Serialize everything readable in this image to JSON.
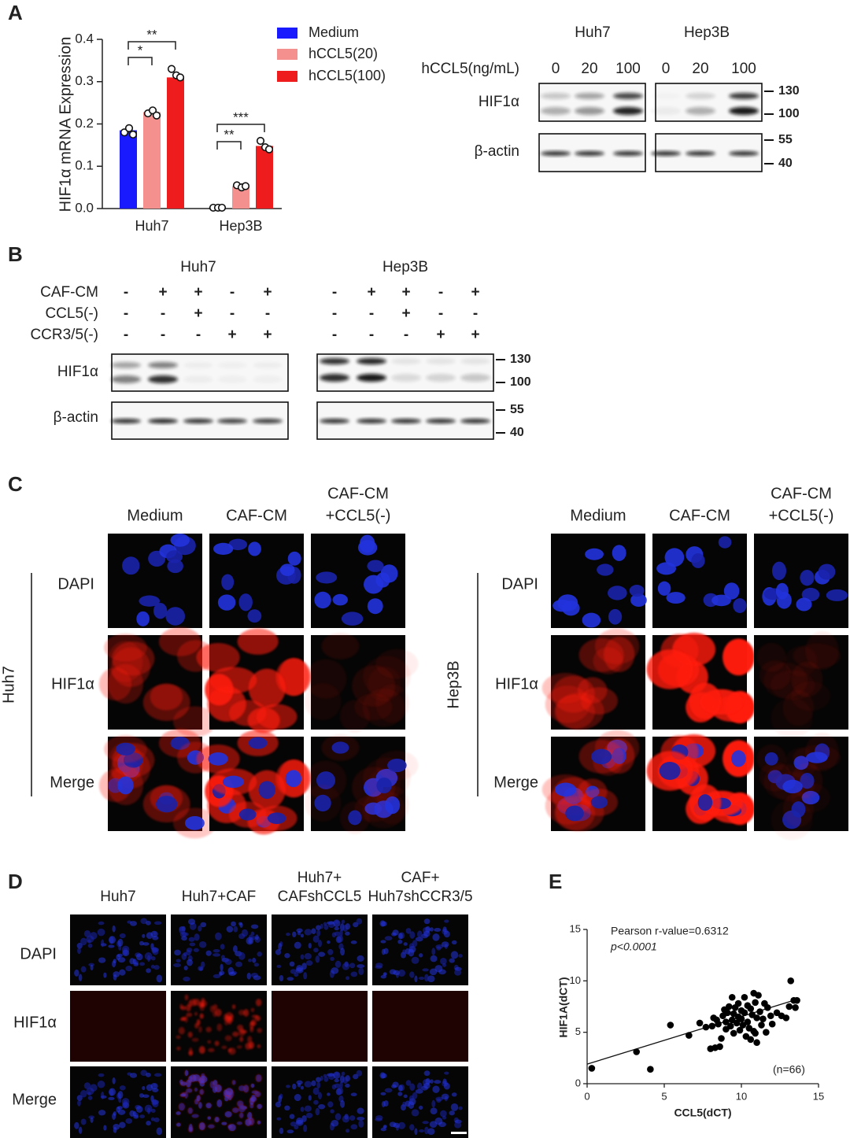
{
  "panel_labels": [
    "A",
    "B",
    "C",
    "D",
    "E"
  ],
  "chart_data": [
    {
      "type": "bar",
      "ylabel": "HIF1α mRNA Expression",
      "categories": [
        "Huh7",
        "Hep3B"
      ],
      "series": [
        {
          "name": "Medium",
          "color": "#1a1aff",
          "values": [
            0.185,
            0.002
          ],
          "points": [
            [
              0.18,
              0.19,
              0.175
            ],
            [
              0.002,
              0.002,
              0.002
            ]
          ]
        },
        {
          "name": "hCCL5(20)",
          "color": "#f4918f",
          "values": [
            0.228,
            0.053
          ],
          "points": [
            [
              0.225,
              0.232,
              0.22
            ],
            [
              0.055,
              0.05,
              0.053
            ]
          ]
        },
        {
          "name": "hCCL5(100)",
          "color": "#ee1c1c",
          "values": [
            0.31,
            0.148
          ],
          "points": [
            [
              0.33,
              0.315,
              0.31
            ],
            [
              0.16,
              0.145,
              0.14
            ]
          ]
        }
      ],
      "ylim": [
        0,
        0.4
      ],
      "yticks": [
        {
          "value": 0,
          "label": "0.0"
        },
        0.1,
        0.2,
        0.3,
        0.4
      ],
      "annotations": [
        "**",
        "*",
        "***",
        "**"
      ],
      "legend": "right"
    },
    {
      "type": "scatter",
      "xlabel": "CCL5(dCT)",
      "ylabel": "HIF1A(dCT)",
      "annotations": [
        "Pearson r-value=0.6312",
        "p<0.0001",
        "(n=66)"
      ],
      "x": [
        0.3,
        3.2,
        4.1,
        5.4,
        6.6,
        7.3,
        7.7,
        8.0,
        8.1,
        8.2,
        8.4,
        8.5,
        8.6,
        8.7,
        8.8,
        8.9,
        9.0,
        9.0,
        9.1,
        9.2,
        9.3,
        9.4,
        9.5,
        9.5,
        9.6,
        9.7,
        9.8,
        9.8,
        9.9,
        10.0,
        10.0,
        10.1,
        10.2,
        10.2,
        10.3,
        10.4,
        10.4,
        10.5,
        10.6,
        10.6,
        10.7,
        10.8,
        10.8,
        10.9,
        11.0,
        11.0,
        11.1,
        11.2,
        11.3,
        11.4,
        11.5,
        11.6,
        11.7,
        11.9,
        12.0,
        12.3,
        12.6,
        12.9,
        13.1,
        13.2,
        13.4,
        13.5,
        13.6,
        8.3,
        9.4,
        10.9
      ],
      "y": [
        1.5,
        3.1,
        1.4,
        5.7,
        4.7,
        5.9,
        5.5,
        3.4,
        5.6,
        6.4,
        6.2,
        5.8,
        3.6,
        4.4,
        6.6,
        7.2,
        6.0,
        5.3,
        6.9,
        7.5,
        5.6,
        6.2,
        4.9,
        6.8,
        7.4,
        5.9,
        6.5,
        7.8,
        5.2,
        7.1,
        6.3,
        5.7,
        8.4,
        6.9,
        4.6,
        7.6,
        6.0,
        5.4,
        7.3,
        4.3,
        6.7,
        8.8,
        5.1,
        7.9,
        4.0,
        6.4,
        8.6,
        7.0,
        5.7,
        6.3,
        7.8,
        5.0,
        7.4,
        6.6,
        5.8,
        6.9,
        6.6,
        6.4,
        7.5,
        10.0,
        8.1,
        7.4,
        8.1,
        3.5,
        8.4,
        4.9
      ],
      "xlim": [
        0,
        15
      ],
      "ylim": [
        0,
        15
      ],
      "xticks": [
        0,
        5,
        10,
        15
      ],
      "yticks": [
        0,
        5,
        10,
        15
      ],
      "color": "#000000",
      "fit_line": {
        "x": [
          0,
          13.6
        ],
        "y": [
          1.9,
          8.2
        ]
      }
    }
  ],
  "blot_a": {
    "cell_lines": [
      "Huh7",
      "Hep3B"
    ],
    "dose_label": "hCCL5(ng/mL)",
    "doses": [
      "0",
      "20",
      "100",
      "0",
      "20",
      "100"
    ],
    "rows": [
      "HIF1α",
      "β-actin"
    ],
    "markers": [
      "130",
      "100",
      "55",
      "40"
    ]
  },
  "blot_b": {
    "cell_lines": [
      "Huh7",
      "Hep3B"
    ],
    "conditions": [
      {
        "name": "CAF-CM",
        "signs": [
          "-",
          "+",
          "+",
          "-",
          "+"
        ]
      },
      {
        "name": "CCL5(-)",
        "signs": [
          "-",
          "-",
          "+",
          "-",
          "-"
        ]
      },
      {
        "name": "CCR3/5(-)",
        "signs": [
          "-",
          "-",
          "-",
          "+",
          "+"
        ]
      }
    ],
    "rows": [
      "HIF1α",
      "β-actin"
    ],
    "markers": [
      "130",
      "100",
      "55",
      "40"
    ]
  },
  "panel_c": {
    "groups": [
      {
        "cell_line": "Huh7",
        "columns": [
          [
            "Medium"
          ],
          [
            "CAF-CM"
          ],
          [
            "CAF-CM",
            "+CCL5(-)"
          ]
        ]
      },
      {
        "cell_line": "Hep3B",
        "columns": [
          [
            "Medium"
          ],
          [
            "CAF-CM"
          ],
          [
            "CAF-CM",
            "+CCL5(-)"
          ]
        ]
      }
    ],
    "rows": [
      "DAPI",
      "HIF1α",
      "Merge"
    ]
  },
  "panel_d": {
    "columns": [
      [
        "Huh7"
      ],
      [
        "Huh7+CAF"
      ],
      [
        "Huh7+",
        "CAFshCCL5"
      ],
      [
        "CAF+",
        "Huh7shCCR3/5"
      ]
    ],
    "rows": [
      "DAPI",
      "HIF1α",
      "Merge"
    ]
  }
}
